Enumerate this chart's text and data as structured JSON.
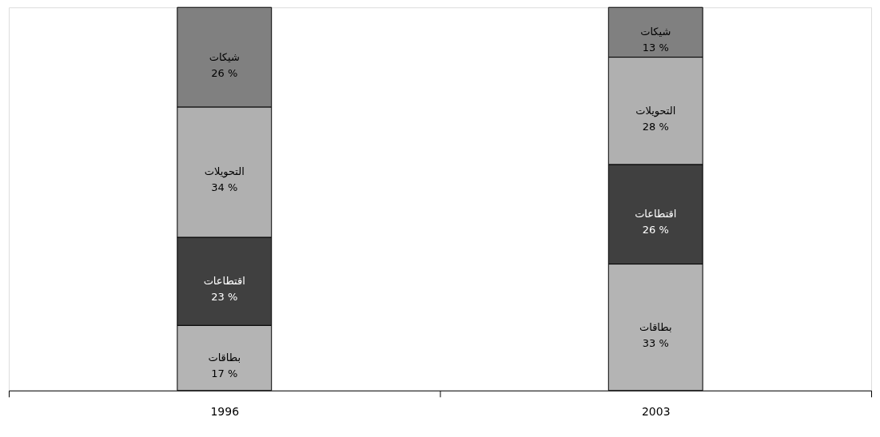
{
  "chart_data": {
    "type": "bar",
    "stacked": true,
    "categories": [
      "1996",
      "2003"
    ],
    "ylim": [
      0,
      100
    ],
    "legend": false,
    "grid": false,
    "tick_labels": "x",
    "series": [
      {
        "name": "بطاقات",
        "color": "#b4b4b4",
        "values": [
          17,
          33
        ],
        "value_labels": [
          "17 %",
          "33 %"
        ]
      },
      {
        "name": "اقتطاعات",
        "color": "#404040",
        "values": [
          23,
          26
        ],
        "value_labels": [
          "23 %",
          "26 %"
        ]
      },
      {
        "name": "التحويلات",
        "color": "#b0b0b0",
        "values": [
          34,
          28
        ],
        "value_labels": [
          "34 %",
          "28 %"
        ]
      },
      {
        "name": "شيكات",
        "color": "#808080",
        "values": [
          26,
          13
        ],
        "value_labels": [
          "26 %",
          "13 %"
        ]
      }
    ]
  }
}
